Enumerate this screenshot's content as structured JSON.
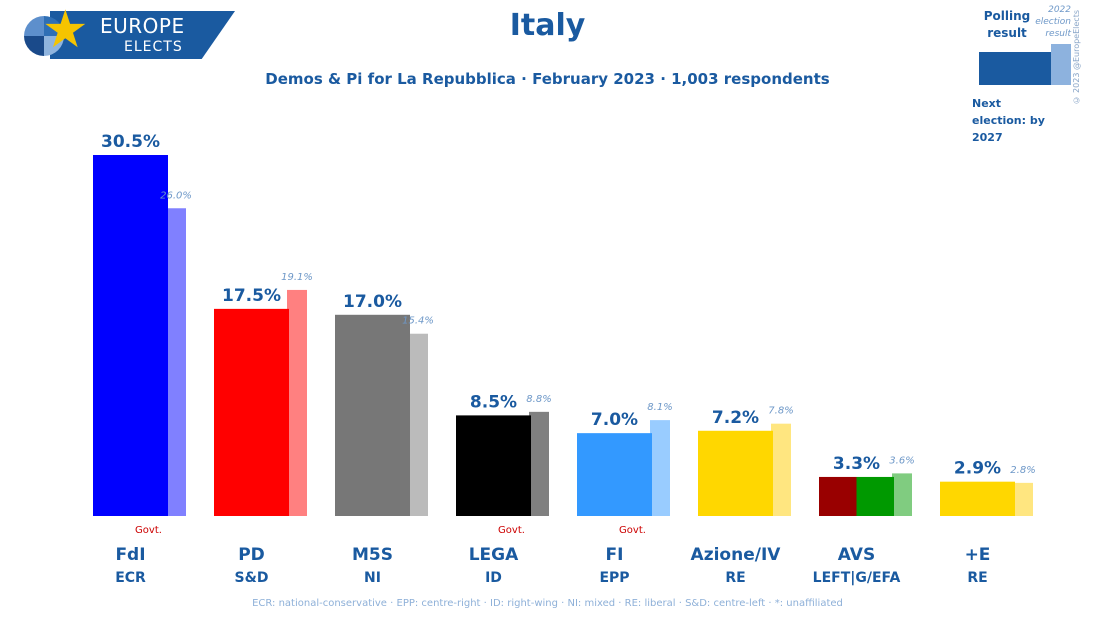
{
  "logo": {
    "line1": "EUROPE",
    "line2": "ELECTS"
  },
  "header": {
    "title": "Italy",
    "subtitle": "Demos & Pi for La Repubblica · February 2023 · 1,003 respondents"
  },
  "legend": {
    "polling_label": "Polling result",
    "election_label": "2022 election result",
    "next_election": "Next election: by 2027",
    "copyright": "© 2023 @EuropeElects"
  },
  "footnote": "ECR: national-conservative · EPP: centre-right · ID: right-wing · NI: mixed · RE: liberal · S&D: centre-left · *: unaffiliated",
  "chart_data": {
    "type": "bar",
    "title": "Italy",
    "categories": [
      "FdI",
      "PD",
      "M5S",
      "LEGA",
      "FI",
      "Azione/IV",
      "AVS",
      "+E"
    ],
    "groups": [
      "ECR",
      "S&D",
      "NI",
      "ID",
      "EPP",
      "RE",
      "LEFT|G/EFA",
      "RE"
    ],
    "govt": [
      true,
      false,
      false,
      true,
      true,
      false,
      false,
      false
    ],
    "govt_label": "Govt.",
    "series": [
      {
        "name": "Polling result",
        "values": [
          30.5,
          17.5,
          17.0,
          8.5,
          7.0,
          7.2,
          3.3,
          2.9
        ],
        "labels": [
          "30.5%",
          "17.5%",
          "17.0%",
          "8.5%",
          "7.0%",
          "7.2%",
          "3.3%",
          "2.9%"
        ]
      },
      {
        "name": "2022 election result",
        "values": [
          26.0,
          19.1,
          15.4,
          8.8,
          8.1,
          7.8,
          3.6,
          2.8
        ],
        "labels": [
          "26.0%",
          "19.1%",
          "15.4%",
          "8.8%",
          "8.1%",
          "7.8%",
          "3.6%",
          "2.8%"
        ]
      }
    ],
    "colors": [
      "#0000ff",
      "#ff0000",
      "#777777",
      "#000000",
      "#3399ff",
      "#ffd700",
      [
        "#990000",
        "#009900"
      ],
      "#ffd700"
    ],
    "election_colors": [
      "#8080ff",
      "#ff8080",
      "#bbbbbb",
      "#808080",
      "#99ccff",
      "#ffe680",
      "#80cc80",
      "#ffe680"
    ],
    "ylim": [
      0,
      30.5
    ]
  }
}
